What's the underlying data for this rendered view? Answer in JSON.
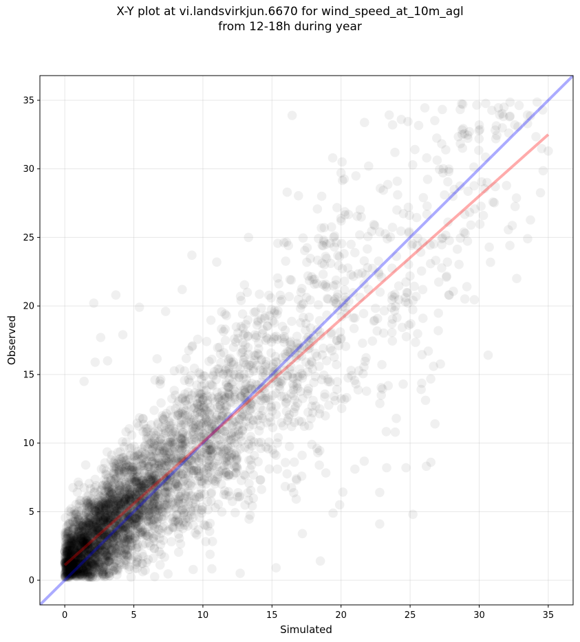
{
  "chart_data": {
    "type": "scatter",
    "title_line1": "X-Y plot at vi.landsvirkjun.6670 for wind_speed_at_10m_agl",
    "title_line2": "from 12-18h during year",
    "xlabel": "Simulated",
    "ylabel": "Observed",
    "xlim": [
      -1.8,
      36.8
    ],
    "ylim": [
      -1.8,
      36.8
    ],
    "xticks": [
      "0",
      "5",
      "10",
      "15",
      "20",
      "25",
      "30",
      "35"
    ],
    "yticks": [
      "0",
      "5",
      "10",
      "15",
      "20",
      "25",
      "30",
      "35"
    ],
    "grid": true,
    "point_color": "#000000",
    "point_alpha": 0.06,
    "identity_line": {
      "x": [
        -1.8,
        36.8
      ],
      "y": [
        -1.8,
        36.8
      ],
      "color": "#0000ff"
    },
    "regression_line": {
      "x": [
        0,
        35
      ],
      "y": [
        1.1,
        32.5
      ],
      "color": "#ff0000"
    },
    "outlier_points": [
      {
        "x": 31.8,
        "y": 34.5
      },
      {
        "x": 32.2,
        "y": 33.8
      },
      {
        "x": 34.6,
        "y": 34.3
      },
      {
        "x": 35.0,
        "y": 31.3
      },
      {
        "x": 30.0,
        "y": 33.2
      },
      {
        "x": 31.2,
        "y": 32.2
      },
      {
        "x": 33.5,
        "y": 33.3
      },
      {
        "x": 23.9,
        "y": 31.2
      },
      {
        "x": 26.2,
        "y": 30.8
      },
      {
        "x": 27.4,
        "y": 30.0
      },
      {
        "x": 19.4,
        "y": 30.8
      },
      {
        "x": 22.0,
        "y": 30.2
      },
      {
        "x": 20.0,
        "y": 29.7
      },
      {
        "x": 16.1,
        "y": 28.3
      },
      {
        "x": 18.6,
        "y": 28.0
      },
      {
        "x": 3.7,
        "y": 20.8
      },
      {
        "x": 2.1,
        "y": 20.2
      },
      {
        "x": 9.2,
        "y": 23.7
      },
      {
        "x": 11.0,
        "y": 23.2
      },
      {
        "x": 13.3,
        "y": 25.0
      },
      {
        "x": 26.7,
        "y": 15.6
      },
      {
        "x": 26.8,
        "y": 11.4
      },
      {
        "x": 26.5,
        "y": 8.6
      },
      {
        "x": 25.2,
        "y": 4.8
      },
      {
        "x": 22.8,
        "y": 4.1
      },
      {
        "x": 18.5,
        "y": 1.4
      },
      {
        "x": 15.3,
        "y": 0.9
      },
      {
        "x": 12.7,
        "y": 0.5
      },
      {
        "x": 17.2,
        "y": 3.4
      },
      {
        "x": 19.9,
        "y": 5.5
      },
      {
        "x": 24.7,
        "y": 8.2
      },
      {
        "x": 24.0,
        "y": 11.8
      },
      {
        "x": 24.5,
        "y": 14.3
      },
      {
        "x": 29.4,
        "y": 25.9
      },
      {
        "x": 30.3,
        "y": 26.6
      },
      {
        "x": 27.8,
        "y": 29.8
      },
      {
        "x": 28.2,
        "y": 28.5
      },
      {
        "x": 27.7,
        "y": 23.2
      },
      {
        "x": 27.8,
        "y": 20.8
      },
      {
        "x": 22.8,
        "y": 6.4
      },
      {
        "x": 21.0,
        "y": 8.1
      },
      {
        "x": 23.3,
        "y": 8.2
      },
      {
        "x": 2.2,
        "y": 15.9
      },
      {
        "x": 1.4,
        "y": 14.5
      },
      {
        "x": 4.2,
        "y": 17.9
      },
      {
        "x": 2.6,
        "y": 17.7
      },
      {
        "x": 5.4,
        "y": 19.9
      },
      {
        "x": 7.3,
        "y": 19.6
      },
      {
        "x": 3.1,
        "y": 16.0
      },
      {
        "x": 8.5,
        "y": 21.2
      }
    ]
  }
}
